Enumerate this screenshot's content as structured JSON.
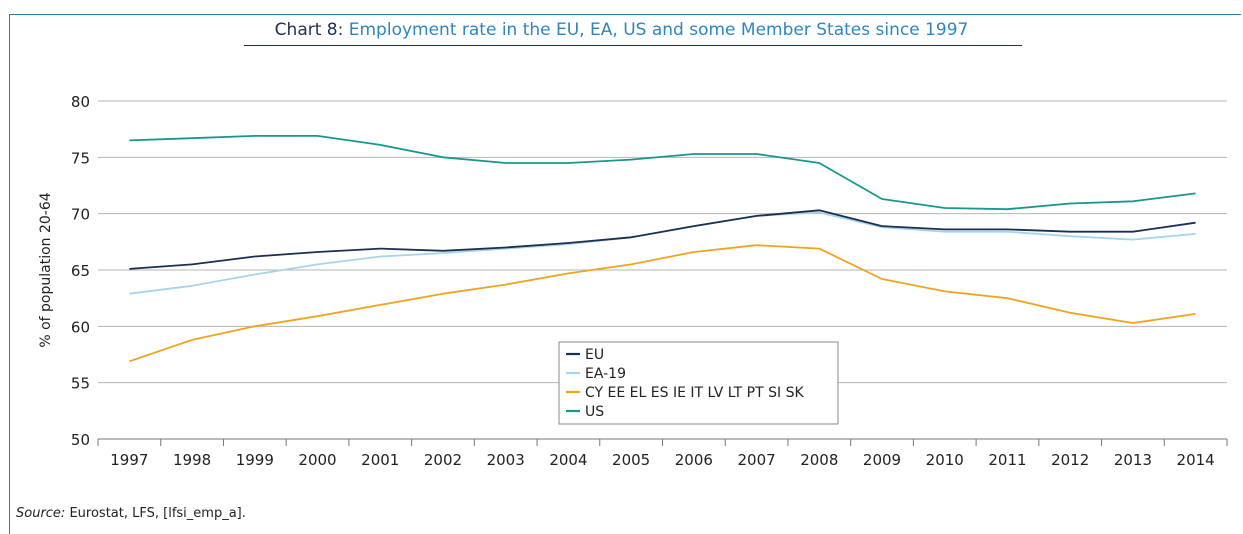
{
  "title": {
    "lead": "Chart 8:",
    "text": "Employment rate in the EU, EA, US and some Member States since 1997"
  },
  "source": {
    "label": "Source:",
    "text": "Eurostat, LFS, [lfsi_emp_a]."
  },
  "colors": {
    "EU": "#1b2f50",
    "EA-19": "#a6d4ea",
    "CY EE EL ES IE IT LV LT PT SI SK": "#f0a41e",
    "US": "#17978e",
    "grid": "#b5b5b5",
    "axis": "#777777"
  },
  "chart_data": {
    "type": "line",
    "title": "Chart 8: Employment rate in the EU, EA, US and some Member States since 1997",
    "xlabel": "",
    "ylabel": "% of population 20-64",
    "ylim": [
      50,
      80
    ],
    "yticks": [
      50,
      55,
      60,
      65,
      70,
      75,
      80
    ],
    "grid": true,
    "legend_position": "center-bottom",
    "x": [
      "1997",
      "1998",
      "1999",
      "2000",
      "2001",
      "2002",
      "2003",
      "2004",
      "2005",
      "2006",
      "2007",
      "2008",
      "2009",
      "2010",
      "2011",
      "2012",
      "2013",
      "2014"
    ],
    "series": [
      {
        "name": "EU",
        "values": [
          65.1,
          65.5,
          66.2,
          66.6,
          66.9,
          66.7,
          67.0,
          67.4,
          67.9,
          68.9,
          69.8,
          70.3,
          68.9,
          68.6,
          68.6,
          68.4,
          68.4,
          69.2
        ]
      },
      {
        "name": "EA-19",
        "values": [
          62.9,
          63.6,
          64.6,
          65.5,
          66.2,
          66.5,
          66.9,
          67.3,
          67.9,
          68.9,
          69.8,
          70.1,
          68.8,
          68.4,
          68.4,
          68.0,
          67.7,
          68.2
        ]
      },
      {
        "name": "CY EE EL ES IE IT LV LT PT SI SK",
        "values": [
          56.9,
          58.8,
          60.0,
          60.9,
          61.9,
          62.9,
          63.7,
          64.7,
          65.5,
          66.6,
          67.2,
          66.9,
          64.2,
          63.1,
          62.5,
          61.2,
          60.3,
          61.1
        ]
      },
      {
        "name": "US",
        "values": [
          76.5,
          76.7,
          76.9,
          76.9,
          76.1,
          75.0,
          74.5,
          74.5,
          74.8,
          75.3,
          75.3,
          74.5,
          71.3,
          70.5,
          70.4,
          70.9,
          71.1,
          71.8
        ]
      }
    ]
  }
}
